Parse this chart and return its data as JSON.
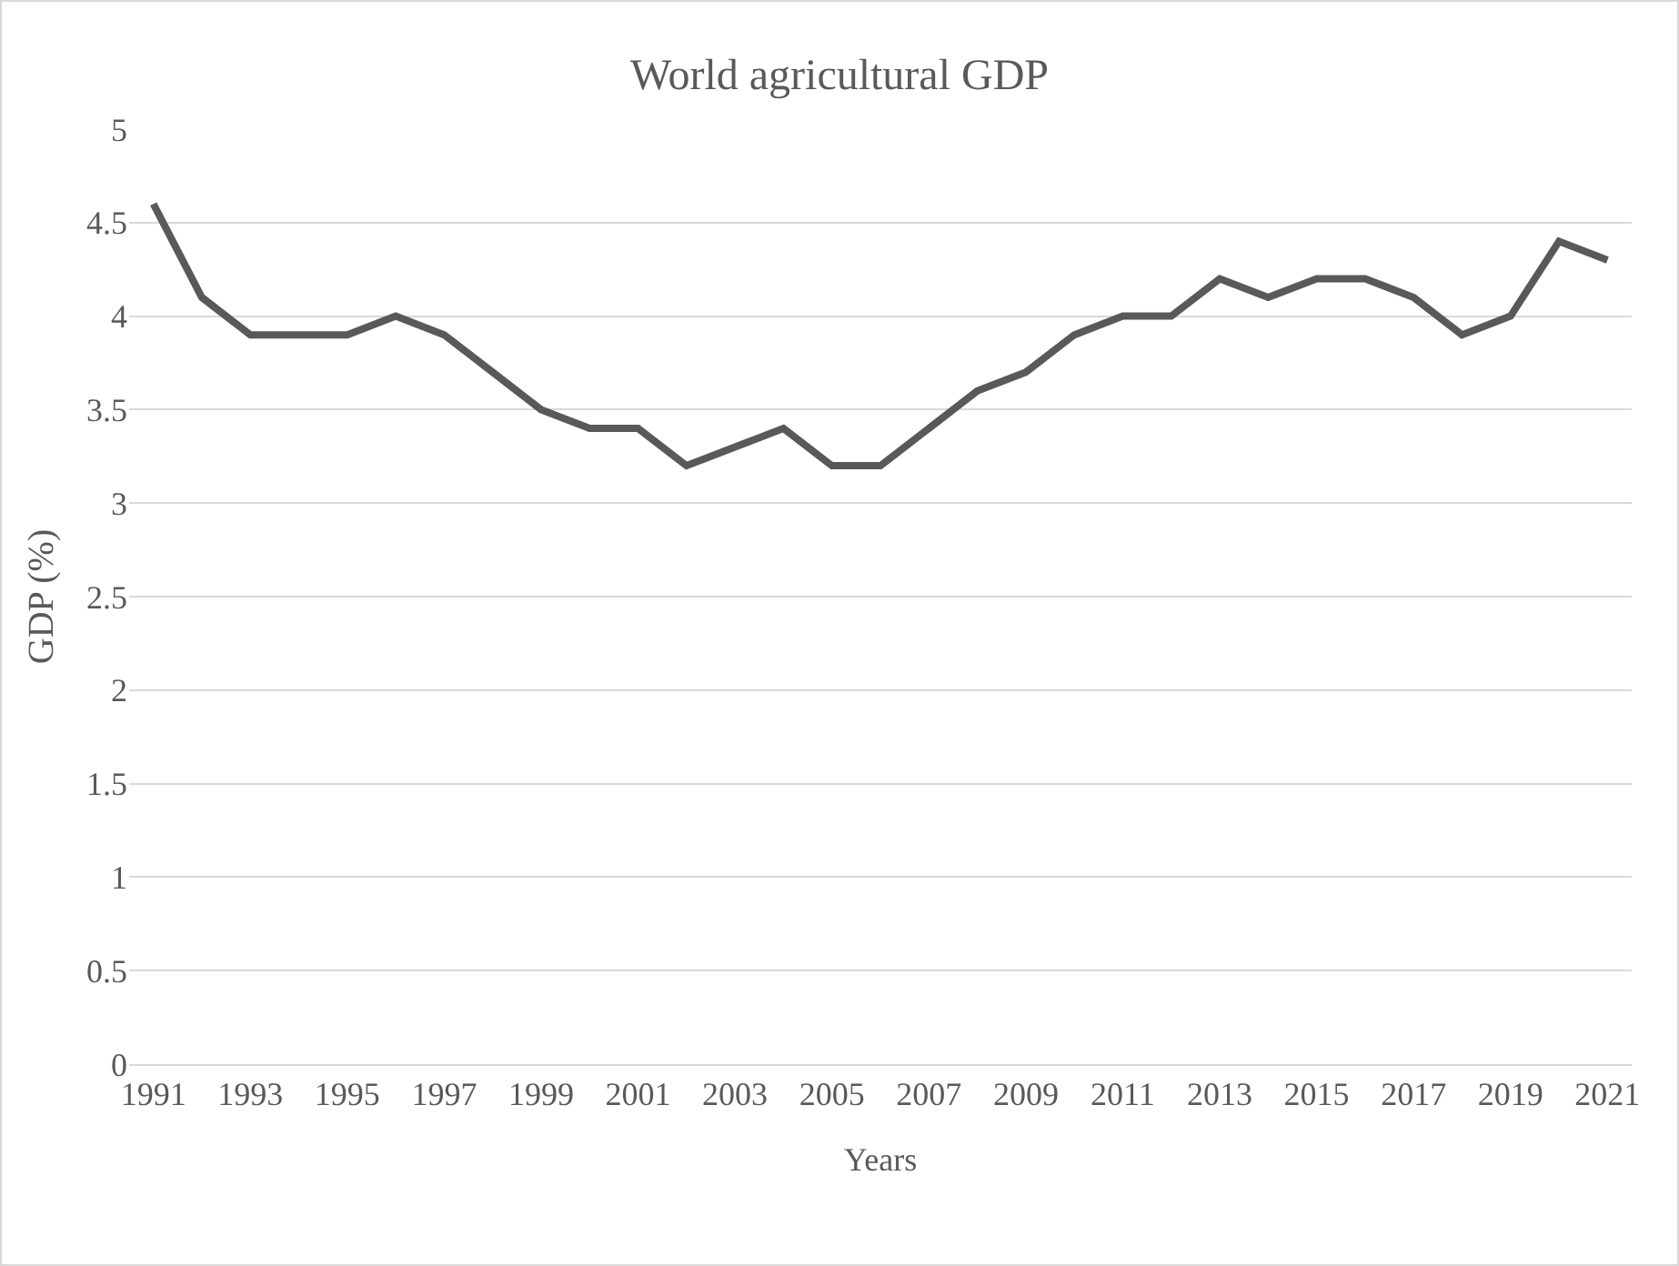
{
  "chart_data": {
    "type": "line",
    "title": "World agricultural GDP",
    "xlabel": "Years",
    "ylabel": "GDP (%)",
    "categories": [
      "1991",
      null,
      "1993",
      null,
      "1995",
      null,
      "1997",
      null,
      "1999",
      null,
      "2001",
      null,
      "2003",
      null,
      "2005",
      null,
      "2007",
      null,
      "2009",
      null,
      "2011",
      null,
      "2013",
      null,
      "2015",
      null,
      "2017",
      null,
      "2019",
      null,
      "2021"
    ],
    "series": [
      {
        "color": "#595959",
        "values": [
          4.6,
          4.1,
          3.9,
          3.9,
          3.9,
          4.0,
          3.9,
          3.7,
          3.5,
          3.4,
          3.4,
          3.2,
          3.3,
          3.4,
          3.2,
          3.2,
          3.4,
          3.6,
          3.7,
          3.9,
          4.0,
          4.0,
          4.2,
          4.1,
          4.2,
          4.2,
          4.1,
          3.9,
          4.0,
          4.4,
          4.3
        ]
      }
    ],
    "ylim": [
      0,
      5
    ],
    "yticks": [
      0,
      0.5,
      1,
      1.5,
      2,
      2.5,
      3,
      3.5,
      4,
      4.5,
      5
    ],
    "grid": "y",
    "legend": false,
    "marker": "none",
    "line_style": "solid"
  }
}
